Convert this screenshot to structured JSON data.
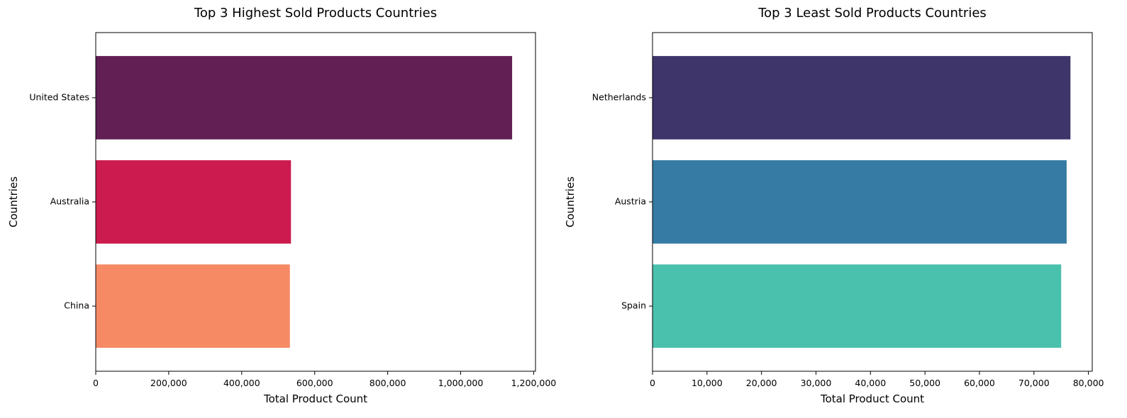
{
  "chart_data": [
    {
      "type": "bar",
      "orientation": "horizontal",
      "title": "Top 3 Highest Sold Products Countries",
      "xlabel": "Total Product Count",
      "ylabel": "Countries",
      "categories": [
        "United States",
        "Australia",
        "China"
      ],
      "values": [
        1141000,
        535000,
        532000
      ],
      "colors": [
        "#611f53",
        "#cb1b4f",
        "#f58a64"
      ],
      "xlim": [
        0,
        1205000
      ],
      "xticks": [
        0,
        200000,
        400000,
        600000,
        800000,
        1000000,
        1200000
      ],
      "xtick_labels": [
        "0",
        "200,000",
        "400,000",
        "600,000",
        "800,000",
        "1,000,000",
        "1,200,000"
      ],
      "grid": false
    },
    {
      "type": "bar",
      "orientation": "horizontal",
      "title": "Top 3 Least Sold Products Countries",
      "xlabel": "Total Product Count",
      "ylabel": "Countries",
      "categories": [
        "Netherlands",
        "Austria",
        "Spain"
      ],
      "values": [
        76700,
        76000,
        75000
      ],
      "colors": [
        "#3e356b",
        "#357ba3",
        "#4ac1ad"
      ],
      "xlim": [
        0,
        80700
      ],
      "xticks": [
        0,
        10000,
        20000,
        30000,
        40000,
        50000,
        60000,
        70000,
        80000
      ],
      "xtick_labels": [
        "0",
        "10,000",
        "20,000",
        "30,000",
        "40,000",
        "50,000",
        "60,000",
        "70,000",
        "80,000"
      ],
      "grid": false
    }
  ]
}
